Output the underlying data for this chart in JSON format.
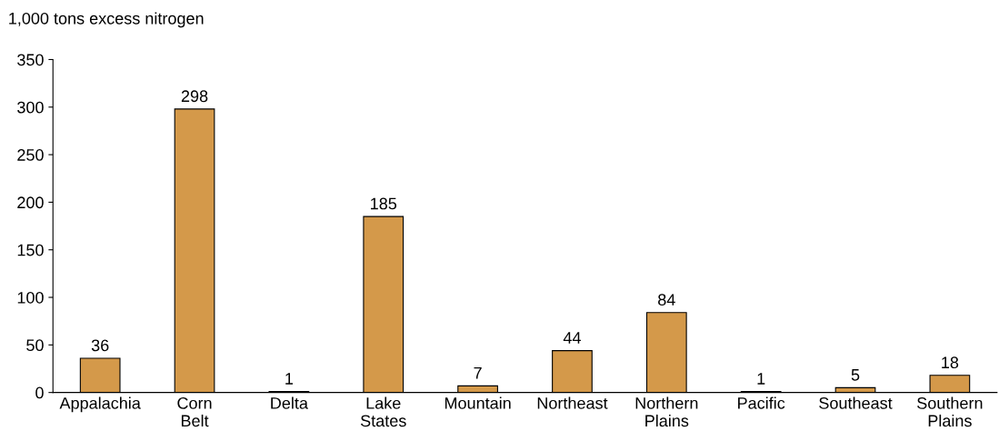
{
  "chart_data": {
    "type": "bar",
    "ylabel": "1,000 tons excess nitrogen",
    "categories": [
      "Appalachia",
      "Corn\nBelt",
      "Delta",
      "Lake\nStates",
      "Mountain",
      "Northeast",
      "Northern\nPlains",
      "Pacific",
      "Southeast",
      "Southern\nPlains"
    ],
    "values": [
      36,
      298,
      1,
      185,
      7,
      44,
      84,
      1,
      5,
      18
    ],
    "color": "#d4994a",
    "ylim": [
      0,
      350
    ],
    "yticks": [
      0,
      50,
      100,
      150,
      200,
      250,
      300,
      350
    ],
    "data_labels": true
  }
}
